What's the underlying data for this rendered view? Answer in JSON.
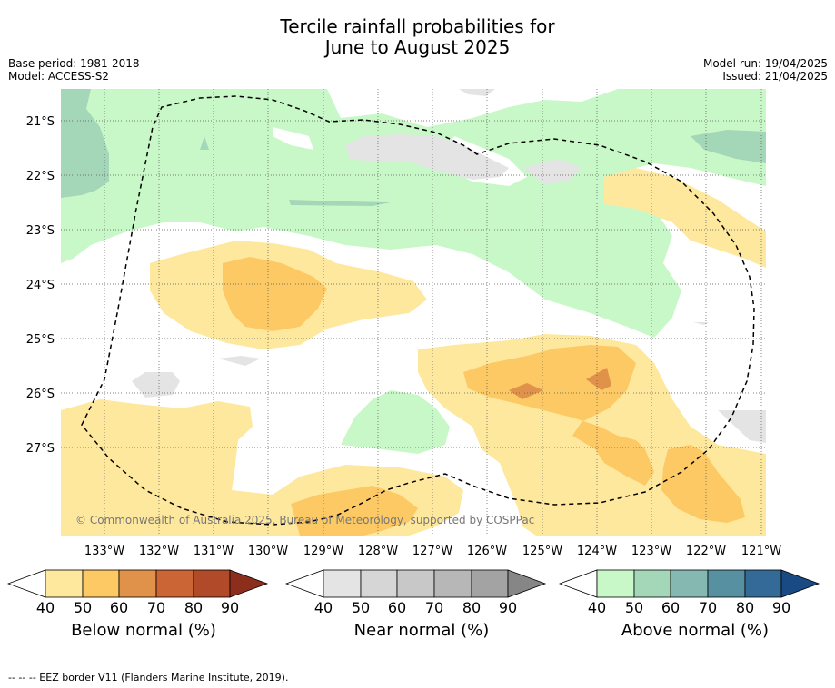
{
  "title_line1": "Tercile rainfall probabilities for",
  "title_line2": "June to August 2025",
  "base_period": "Base period: 1981-2018",
  "model": "Model: ACCESS-S2",
  "model_run": "Model run: 19/04/2025",
  "issued": "Issued: 21/04/2025",
  "copyright": "© Commonwealth of Australia 2025, Bureau of Meteorology, supported by COSPPac",
  "map": {
    "lat_labels": [
      "21°S",
      "22°S",
      "23°S",
      "24°S",
      "25°S",
      "26°S",
      "27°S"
    ],
    "lon_labels": [
      "133°W",
      "132°W",
      "131°W",
      "130°W",
      "129°W",
      "128°W",
      "127°W",
      "126°W",
      "125°W",
      "124°W",
      "123°W",
      "122°W",
      "121°W"
    ]
  },
  "colorbars": [
    {
      "label": "Below normal (%)",
      "ticks": [
        "40",
        "50",
        "60",
        "70",
        "80",
        "90"
      ],
      "colors": [
        "#fee89e",
        "#fdc964",
        "#e0924a",
        "#cc6536",
        "#b04a28",
        "#8c2e1c"
      ]
    },
    {
      "label": "Near normal (%)",
      "ticks": [
        "40",
        "50",
        "60",
        "70",
        "80",
        "90"
      ],
      "colors": [
        "#e4e4e4",
        "#d6d6d6",
        "#c8c8c8",
        "#b7b7b7",
        "#a3a3a3",
        "#868686"
      ]
    },
    {
      "label": "Above normal (%)",
      "ticks": [
        "40",
        "50",
        "60",
        "70",
        "80",
        "90"
      ],
      "colors": [
        "#c9f8c8",
        "#a4d6b8",
        "#84b8b0",
        "#5790a0",
        "#336a98",
        "#1a4a84"
      ]
    }
  ],
  "footer": "--  --  -- EEZ border V11 (Flanders Marine Institute, 2019)."
}
